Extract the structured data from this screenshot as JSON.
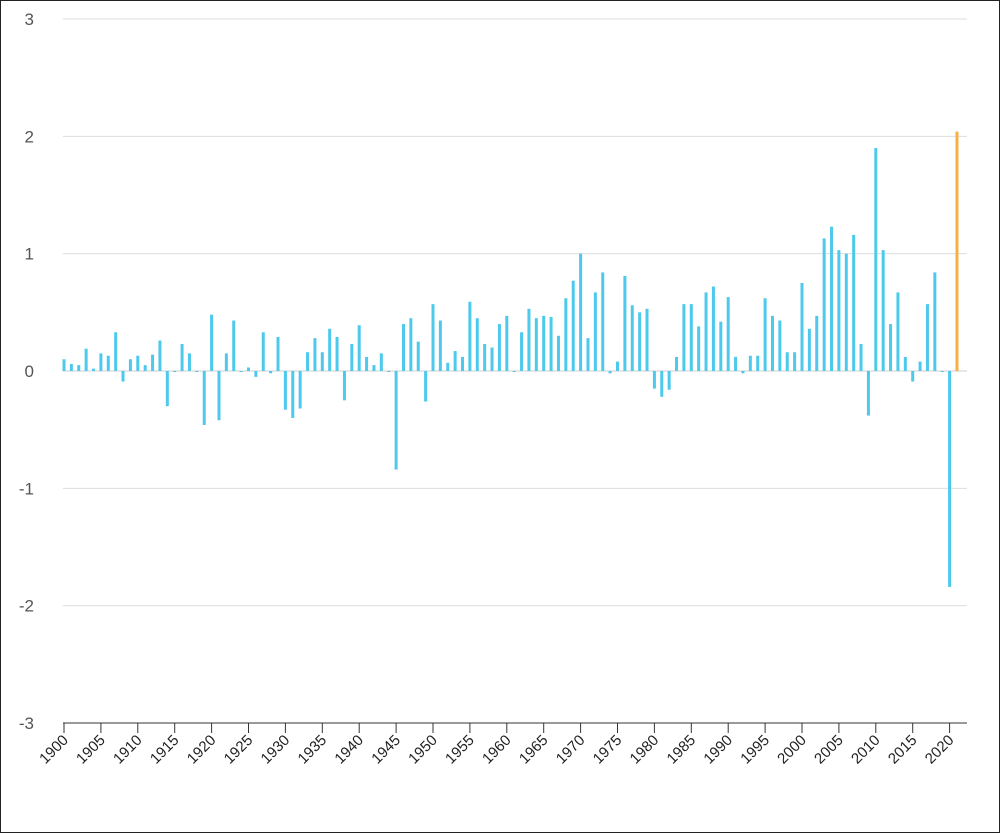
{
  "chart_data": {
    "type": "bar",
    "title": "",
    "xlabel": "",
    "ylabel": "",
    "ylim": [
      -3,
      3
    ],
    "y_ticks": [
      3,
      2,
      1,
      0,
      -1,
      -2,
      -3
    ],
    "x_ticks": [
      1900,
      1905,
      1910,
      1915,
      1920,
      1925,
      1930,
      1935,
      1940,
      1945,
      1950,
      1955,
      1960,
      1965,
      1970,
      1975,
      1980,
      1985,
      1990,
      1995,
      2000,
      2005,
      2010,
      2015,
      2020
    ],
    "grid": true,
    "bar_color": "#4dc9ec",
    "highlight_color": "#f5b041",
    "highlight_year": 2021,
    "x": [
      1900,
      1901,
      1902,
      1903,
      1904,
      1905,
      1906,
      1907,
      1908,
      1909,
      1910,
      1911,
      1912,
      1913,
      1914,
      1915,
      1916,
      1917,
      1918,
      1919,
      1920,
      1921,
      1922,
      1923,
      1924,
      1925,
      1926,
      1927,
      1928,
      1929,
      1930,
      1931,
      1932,
      1933,
      1934,
      1935,
      1936,
      1937,
      1938,
      1939,
      1940,
      1941,
      1942,
      1943,
      1944,
      1945,
      1946,
      1947,
      1948,
      1949,
      1950,
      1951,
      1952,
      1953,
      1954,
      1955,
      1956,
      1957,
      1958,
      1959,
      1960,
      1961,
      1962,
      1963,
      1964,
      1965,
      1966,
      1967,
      1968,
      1969,
      1970,
      1971,
      1972,
      1973,
      1974,
      1975,
      1976,
      1977,
      1978,
      1979,
      1980,
      1981,
      1982,
      1983,
      1984,
      1985,
      1986,
      1987,
      1988,
      1989,
      1990,
      1991,
      1992,
      1993,
      1994,
      1995,
      1996,
      1997,
      1998,
      1999,
      2000,
      2001,
      2002,
      2003,
      2004,
      2005,
      2006,
      2007,
      2008,
      2009,
      2010,
      2011,
      2012,
      2013,
      2014,
      2015,
      2016,
      2017,
      2018,
      2019,
      2020,
      2021
    ],
    "values": [
      0.1,
      0.06,
      0.05,
      0.19,
      0.02,
      0.15,
      0.13,
      0.33,
      -0.09,
      0.1,
      0.13,
      0.05,
      0.14,
      0.26,
      -0.3,
      0.0,
      0.23,
      0.15,
      0.0,
      -0.46,
      0.48,
      -0.42,
      0.15,
      0.43,
      0.0,
      0.03,
      -0.05,
      0.33,
      -0.02,
      0.29,
      -0.33,
      -0.4,
      -0.32,
      0.16,
      0.28,
      0.16,
      0.36,
      0.29,
      -0.25,
      0.23,
      0.39,
      0.12,
      0.05,
      0.15,
      0.0,
      -0.84,
      0.4,
      0.45,
      0.25,
      -0.26,
      0.57,
      0.43,
      0.07,
      0.17,
      0.12,
      0.59,
      0.45,
      0.23,
      0.2,
      0.4,
      0.47,
      0.0,
      0.33,
      0.53,
      0.45,
      0.47,
      0.46,
      0.3,
      0.62,
      0.77,
      1.0,
      0.28,
      0.67,
      0.84,
      -0.02,
      0.08,
      0.81,
      0.56,
      0.5,
      0.53,
      -0.15,
      -0.22,
      -0.16,
      0.12,
      0.57,
      0.57,
      0.38,
      0.67,
      0.72,
      0.42,
      0.63,
      0.12,
      -0.02,
      0.13,
      0.13,
      0.62,
      0.47,
      0.43,
      0.16,
      0.16,
      0.75,
      0.36,
      0.47,
      1.13,
      1.23,
      1.03,
      1.0,
      1.16,
      0.23,
      -0.38,
      1.9,
      1.03,
      0.4,
      0.67,
      0.12,
      -0.09,
      0.08,
      0.57,
      0.84,
      0.0,
      -1.84,
      2.04
    ]
  }
}
